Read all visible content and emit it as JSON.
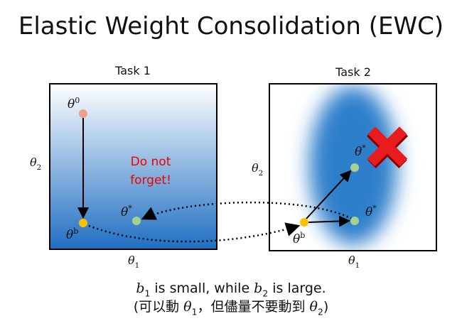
{
  "title": "Elastic Weight Consolidation (EWC)",
  "panels": [
    {
      "label": "Task 1",
      "x_axis": {
        "base": "θ",
        "sub": "1"
      },
      "y_axis": {
        "base": "θ",
        "sub": "2"
      },
      "points": [
        {
          "base": "θ",
          "sup": "0"
        },
        {
          "base": "θ",
          "sup": "b"
        },
        {
          "base": "θ",
          "sup": "*"
        }
      ],
      "note": [
        "Do not",
        "forget!"
      ]
    },
    {
      "label": "Task 2",
      "x_axis": {
        "base": "θ",
        "sub": "1"
      },
      "y_axis": {
        "base": "θ",
        "sub": "2"
      },
      "points": [
        {
          "base": "θ",
          "sup": "b"
        },
        {
          "base": "θ",
          "sup": "*"
        },
        {
          "base": "θ",
          "sup": "*"
        }
      ]
    }
  ],
  "caption": {
    "line1": [
      {
        "base": "b",
        "sub": "1"
      },
      " is small, while ",
      {
        "base": "b",
        "sub": "2"
      },
      " is large."
    ],
    "line2": [
      "(可以動 ",
      {
        "base": "θ",
        "sub": "1"
      },
      "，但儘量不要動到 ",
      {
        "base": "θ",
        "sub": "2"
      },
      ")"
    ]
  }
}
